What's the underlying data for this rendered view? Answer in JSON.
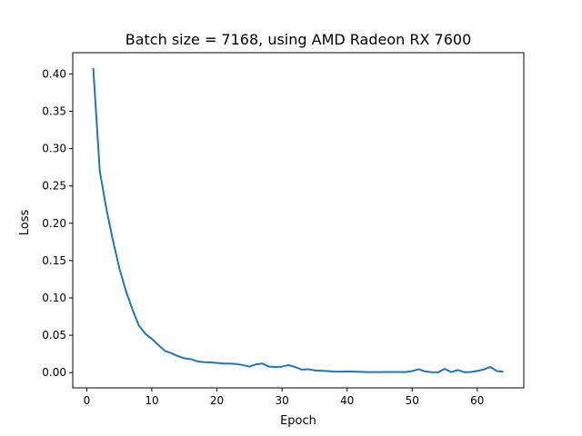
{
  "chart_data": {
    "type": "line",
    "title": "Batch size = 7168, using AMD Radeon RX 7600",
    "xlabel": "Epoch",
    "ylabel": "Loss",
    "xlim": [
      -2.15,
      67.15
    ],
    "ylim": [
      -0.0205,
      0.4285
    ],
    "xticks": [
      0,
      10,
      20,
      30,
      40,
      50,
      60
    ],
    "yticks": [
      0.0,
      0.05,
      0.1,
      0.15,
      0.2,
      0.25,
      0.3,
      0.35,
      0.4
    ],
    "ytick_labels": [
      "0.00",
      "0.05",
      "0.10",
      "0.15",
      "0.20",
      "0.25",
      "0.30",
      "0.35",
      "0.40"
    ],
    "grid": false,
    "series": [
      {
        "color": "#1f77b4",
        "x": [
          1,
          2,
          3,
          4,
          5,
          6,
          7,
          8,
          9,
          10,
          11,
          12,
          13,
          14,
          15,
          16,
          17,
          18,
          19,
          20,
          21,
          22,
          23,
          24,
          25,
          26,
          27,
          28,
          29,
          30,
          31,
          32,
          33,
          34,
          35,
          36,
          37,
          38,
          39,
          40,
          41,
          42,
          43,
          44,
          45,
          46,
          47,
          48,
          49,
          50,
          51,
          52,
          53,
          54,
          55,
          56,
          57,
          58,
          59,
          60,
          61,
          62,
          63,
          64
        ],
        "y": [
          0.408,
          0.27,
          0.22,
          0.178,
          0.14,
          0.11,
          0.085,
          0.063,
          0.052,
          0.045,
          0.037,
          0.029,
          0.026,
          0.022,
          0.019,
          0.018,
          0.015,
          0.014,
          0.0135,
          0.013,
          0.012,
          0.012,
          0.0115,
          0.01,
          0.008,
          0.011,
          0.012,
          0.008,
          0.0075,
          0.008,
          0.01,
          0.0075,
          0.004,
          0.0045,
          0.003,
          0.0025,
          0.002,
          0.0012,
          0.0012,
          0.0015,
          0.0012,
          0.0009,
          0.0007,
          0.0006,
          0.0006,
          0.0008,
          0.0008,
          0.0008,
          0.0007,
          0.002,
          0.0045,
          0.0015,
          0.0005,
          0.0003,
          0.005,
          0.0005,
          0.0035,
          0.0005,
          0.0008,
          0.0022,
          0.0042,
          0.0075,
          0.002,
          0.0012
        ]
      }
    ]
  }
}
